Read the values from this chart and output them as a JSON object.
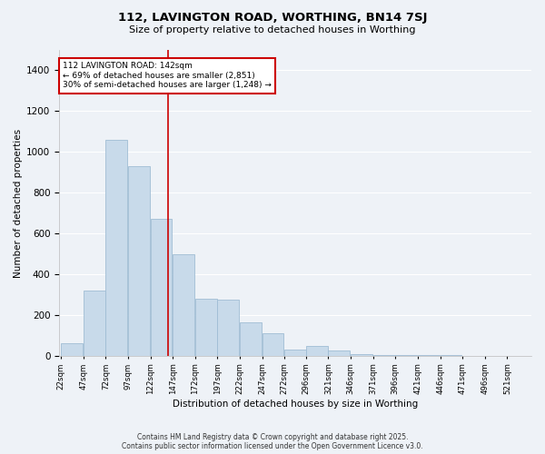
{
  "title": "112, LAVINGTON ROAD, WORTHING, BN14 7SJ",
  "subtitle": "Size of property relative to detached houses in Worthing",
  "xlabel": "Distribution of detached houses by size in Worthing",
  "ylabel": "Number of detached properties",
  "bar_color": "#c8daea",
  "bar_edge_color": "#a0bdd4",
  "background_color": "#eef2f7",
  "grid_color": "#ffffff",
  "annotation_box_color": "#cc0000",
  "annotation_line_color": "#cc0000",
  "property_size": 142,
  "annotation_text_line1": "112 LAVINGTON ROAD: 142sqm",
  "annotation_text_line2": "← 69% of detached houses are smaller (2,851)",
  "annotation_text_line3": "30% of semi-detached houses are larger (1,248) →",
  "categories": [
    "22sqm",
    "47sqm",
    "72sqm",
    "97sqm",
    "122sqm",
    "147sqm",
    "172sqm",
    "197sqm",
    "222sqm",
    "247sqm",
    "272sqm",
    "296sqm",
    "321sqm",
    "346sqm",
    "371sqm",
    "396sqm",
    "421sqm",
    "446sqm",
    "471sqm",
    "496sqm",
    "521sqm"
  ],
  "bin_starts": [
    22,
    47,
    72,
    97,
    122,
    147,
    172,
    197,
    222,
    247,
    272,
    296,
    321,
    346,
    371,
    396,
    421,
    446,
    471,
    496,
    521
  ],
  "bin_width": 25,
  "values": [
    60,
    320,
    1060,
    930,
    670,
    500,
    280,
    275,
    165,
    110,
    30,
    50,
    28,
    10,
    5,
    5,
    2,
    5,
    1,
    0,
    0
  ],
  "ylim": [
    0,
    1500
  ],
  "yticks": [
    0,
    200,
    400,
    600,
    800,
    1000,
    1200,
    1400
  ],
  "footer_line1": "Contains HM Land Registry data © Crown copyright and database right 2025.",
  "footer_line2": "Contains public sector information licensed under the Open Government Licence v3.0."
}
